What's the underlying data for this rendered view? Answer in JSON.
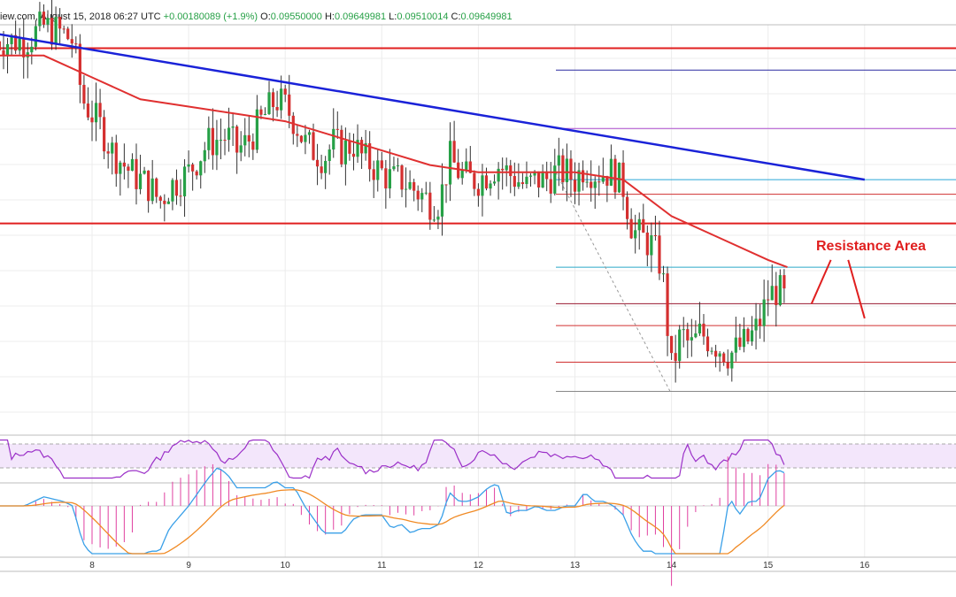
{
  "header": {
    "source_date": "iew.com, August 15, 2018 06:27 UTC",
    "change": "+0.00180089 (+1.9%)",
    "o_label": "O:",
    "o_value": "0.09550000",
    "h_label": "H:",
    "h_value": "0.09649981",
    "l_label": "L:",
    "l_value": "0.09510014",
    "c_label": "C:",
    "c_value": "0.09649981"
  },
  "annotation": {
    "resistance_label": "Resistance Area"
  },
  "colors": {
    "up": "#26a046",
    "down": "#d42f2f",
    "ma": "#e03030",
    "trend": "#1a22d8",
    "resistance": "#e01f1f",
    "rsi": "#9b30c8",
    "macd": "#3aa0e8",
    "signal": "#f08a24",
    "hist": "#e040a0"
  },
  "chart_data": {
    "type": "candlestick",
    "x_ticks": [
      "8",
      "9",
      "10",
      "11",
      "12",
      "13",
      "14",
      "15",
      "16"
    ],
    "price_ylim": [
      0.0948,
      0.1003
    ],
    "grid": true,
    "close_path": [
      [
        7.0,
        0.1002
      ],
      [
        7.3,
        0.1002
      ],
      [
        7.5,
        0.1004
      ],
      [
        7.7,
        0.1003
      ],
      [
        7.8,
        0.1002
      ],
      [
        7.9,
        0.0994
      ],
      [
        8.0,
        0.0992
      ],
      [
        8.1,
        0.099
      ],
      [
        8.2,
        0.0987
      ],
      [
        8.4,
        0.0984
      ],
      [
        8.6,
        0.0982
      ],
      [
        8.7,
        0.098
      ],
      [
        8.8,
        0.0982
      ],
      [
        8.9,
        0.0983
      ],
      [
        9.0,
        0.0984
      ],
      [
        9.1,
        0.0986
      ],
      [
        9.2,
        0.0988
      ],
      [
        9.4,
        0.0989
      ],
      [
        9.5,
        0.0987
      ],
      [
        9.6,
        0.0988
      ],
      [
        9.7,
        0.099
      ],
      [
        9.8,
        0.0992
      ],
      [
        9.9,
        0.0994
      ],
      [
        10.0,
        0.0993
      ],
      [
        10.1,
        0.0991
      ],
      [
        10.2,
        0.0988
      ],
      [
        10.3,
        0.0987
      ],
      [
        10.4,
        0.0986
      ],
      [
        10.5,
        0.0988
      ],
      [
        10.6,
        0.0987
      ],
      [
        10.7,
        0.0988
      ],
      [
        10.8,
        0.0986
      ],
      [
        10.9,
        0.0985
      ],
      [
        11.0,
        0.0984
      ],
      [
        11.1,
        0.0983
      ],
      [
        11.2,
        0.0983
      ],
      [
        11.3,
        0.0982
      ],
      [
        11.4,
        0.0981
      ],
      [
        11.5,
        0.098
      ],
      [
        11.6,
        0.098
      ],
      [
        11.7,
        0.0986
      ],
      [
        11.8,
        0.0984
      ],
      [
        11.9,
        0.0983
      ],
      [
        12.0,
        0.0983
      ],
      [
        12.1,
        0.0984
      ],
      [
        12.2,
        0.0985
      ],
      [
        12.3,
        0.0984
      ],
      [
        12.4,
        0.0983
      ],
      [
        12.5,
        0.0982
      ],
      [
        12.6,
        0.0983
      ],
      [
        12.7,
        0.0983
      ],
      [
        12.8,
        0.0984
      ],
      [
        12.9,
        0.0984
      ],
      [
        13.0,
        0.0983
      ],
      [
        13.1,
        0.0985
      ],
      [
        13.2,
        0.0984
      ],
      [
        13.3,
        0.0984
      ],
      [
        13.4,
        0.0984
      ],
      [
        13.5,
        0.0982
      ],
      [
        13.6,
        0.0976
      ],
      [
        13.7,
        0.0975
      ],
      [
        13.8,
        0.0974
      ],
      [
        13.9,
        0.0971
      ],
      [
        14.0,
        0.0957
      ],
      [
        14.1,
        0.0962
      ],
      [
        14.2,
        0.096
      ],
      [
        14.3,
        0.0962
      ],
      [
        14.4,
        0.0961
      ],
      [
        14.5,
        0.096
      ],
      [
        14.6,
        0.0959
      ],
      [
        14.7,
        0.096
      ],
      [
        14.8,
        0.0961
      ],
      [
        14.9,
        0.0963
      ],
      [
        15.0,
        0.0967
      ],
      [
        15.1,
        0.0968
      ],
      [
        15.2,
        0.0966
      ]
    ],
    "ma_path": [
      [
        7.0,
        0.1
      ],
      [
        7.5,
        0.1
      ],
      [
        8.0,
        0.0997
      ],
      [
        8.5,
        0.0994
      ],
      [
        9.0,
        0.0993
      ],
      [
        9.5,
        0.0992
      ],
      [
        10.0,
        0.0991
      ],
      [
        10.5,
        0.0989
      ],
      [
        11.0,
        0.0987
      ],
      [
        11.5,
        0.0985
      ],
      [
        12.0,
        0.0984
      ],
      [
        12.5,
        0.0984
      ],
      [
        13.0,
        0.0984
      ],
      [
        13.5,
        0.0983
      ],
      [
        14.0,
        0.0978
      ],
      [
        14.5,
        0.0975
      ],
      [
        15.0,
        0.0972
      ],
      [
        15.2,
        0.0971
      ]
    ],
    "trendline": [
      [
        7.0,
        0.1003
      ],
      [
        16.0,
        0.0983
      ]
    ],
    "resistance_levels": [
      0.1001,
      0.0977
    ],
    "fib_levels": [
      0.0998,
      0.099,
      0.0983,
      0.0981,
      0.0977,
      0.0971,
      0.0966,
      0.0963,
      0.0958,
      0.0954
    ],
    "rsi": {
      "ylim": [
        20,
        80
      ]
    },
    "macd": {
      "ylim": [
        -0.0015,
        0.0015
      ]
    }
  }
}
